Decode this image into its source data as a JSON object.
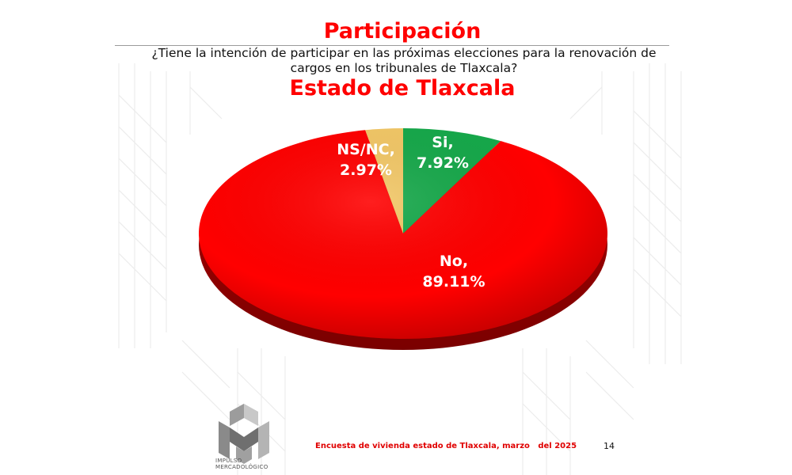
{
  "header": {
    "title": "Participación",
    "question": "¿Tiene la intención de participar en las próximas elecciones para la renovación de cargos en los tribunales de Tlaxcala?",
    "subtitle": "Estado de Tlaxcala"
  },
  "chart_data": {
    "type": "pie",
    "title": "Participación",
    "subtitle": "Estado de Tlaxcala",
    "three_d": true,
    "slices": [
      {
        "label": "Si",
        "value": 7.92,
        "display": "7.92%",
        "color": "#16a84a"
      },
      {
        "label": "No",
        "value": 89.11,
        "display": "89.11%",
        "color": "#ff0000"
      },
      {
        "label": "NS/NC",
        "value": 2.97,
        "display": "2.97%",
        "color": "#f2c766"
      }
    ],
    "start": "top",
    "direction": "clockwise",
    "legend": "none"
  },
  "footer": {
    "source": "Encuesta de vivienda estado de Tlaxcala, marzo   del 2025",
    "page": "14"
  },
  "logo": {
    "line1": "IMPULSO",
    "line2": "MERCADOLÓGICO"
  }
}
